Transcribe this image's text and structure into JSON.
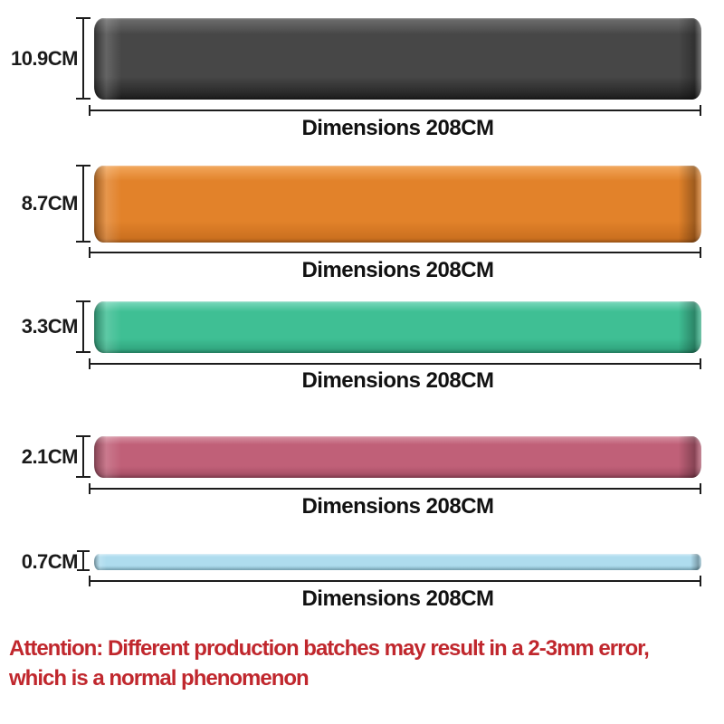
{
  "bands": [
    {
      "name": "black-band",
      "height_label": "10.9CM",
      "height_cm": 10.9,
      "length_cm": 208,
      "dimension_label": "Dimensions 208CM",
      "color": "#474747",
      "color_light": "#6f6f6f",
      "color_dark": "#1e1e1e"
    },
    {
      "name": "orange-band",
      "height_label": "8.7CM",
      "height_cm": 8.7,
      "length_cm": 208,
      "dimension_label": "Dimensions 208CM",
      "color": "#e2822a",
      "color_light": "#f2a75c",
      "color_dark": "#c66c1d"
    },
    {
      "name": "green-band",
      "height_label": "3.3CM",
      "height_cm": 3.3,
      "length_cm": 208,
      "dimension_label": "Dimensions 208CM",
      "color": "#3fbf94",
      "color_light": "#7cd9bd",
      "color_dark": "#2d9f79"
    },
    {
      "name": "pink-band",
      "height_label": "2.1CM",
      "height_cm": 2.1,
      "length_cm": 208,
      "dimension_label": "Dimensions 208CM",
      "color": "#c06078",
      "color_light": "#d793a4",
      "color_dark": "#a04a61"
    },
    {
      "name": "blue-band",
      "height_label": "0.7CM",
      "height_cm": 0.7,
      "length_cm": 208,
      "dimension_label": "Dimensions 208CM",
      "color": "#aedcee",
      "color_light": "#ccebf7",
      "color_dark": "#97cde2"
    }
  ],
  "attention": {
    "line1": "Attention: Different production batches may result in a 2-3mm error,",
    "line2": "which is a normal phenomenon",
    "color": "#c0272d"
  },
  "line_color": "#1c1c1c"
}
